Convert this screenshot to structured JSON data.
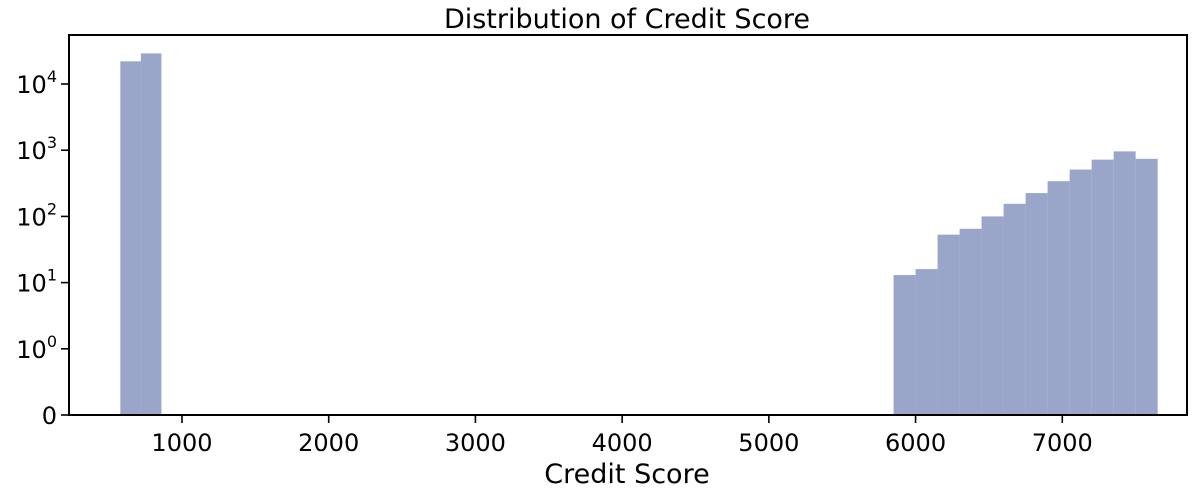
{
  "chart_data": {
    "type": "bar",
    "title": "Distribution of Credit Score",
    "xlabel": "Credit Score",
    "ylabel": "",
    "yscale": "symlog",
    "bar_color": "#99a5c9",
    "xlim": [
      230,
      7850
    ],
    "ylim": [
      0,
      55000
    ],
    "x_ticks": [
      {
        "value": 1000,
        "label": "1000"
      },
      {
        "value": 2000,
        "label": "2000"
      },
      {
        "value": 3000,
        "label": "3000"
      },
      {
        "value": 4000,
        "label": "4000"
      },
      {
        "value": 5000,
        "label": "5000"
      },
      {
        "value": 6000,
        "label": "6000"
      },
      {
        "value": 7000,
        "label": "7000"
      }
    ],
    "y_ticks": [
      {
        "value": 0,
        "base": "0",
        "exp": ""
      },
      {
        "value": 1,
        "base": "10",
        "exp": "0"
      },
      {
        "value": 10,
        "base": "10",
        "exp": "1"
      },
      {
        "value": 100,
        "base": "10",
        "exp": "2"
      },
      {
        "value": 1000,
        "base": "10",
        "exp": "3"
      },
      {
        "value": 10000,
        "base": "10",
        "exp": "4"
      }
    ],
    "bins": [
      {
        "x0": 580,
        "x1": 720,
        "count": 22000
      },
      {
        "x0": 720,
        "x1": 860,
        "count": 29000
      },
      {
        "x0": 5850,
        "x1": 6000,
        "count": 13
      },
      {
        "x0": 6000,
        "x1": 6150,
        "count": 16
      },
      {
        "x0": 6150,
        "x1": 6300,
        "count": 53
      },
      {
        "x0": 6300,
        "x1": 6450,
        "count": 65
      },
      {
        "x0": 6450,
        "x1": 6600,
        "count": 100
      },
      {
        "x0": 6600,
        "x1": 6750,
        "count": 155
      },
      {
        "x0": 6750,
        "x1": 6900,
        "count": 225
      },
      {
        "x0": 6900,
        "x1": 7050,
        "count": 340
      },
      {
        "x0": 7050,
        "x1": 7200,
        "count": 510
      },
      {
        "x0": 7200,
        "x1": 7350,
        "count": 720
      },
      {
        "x0": 7350,
        "x1": 7500,
        "count": 960
      },
      {
        "x0": 7500,
        "x1": 7650,
        "count": 740
      }
    ]
  }
}
